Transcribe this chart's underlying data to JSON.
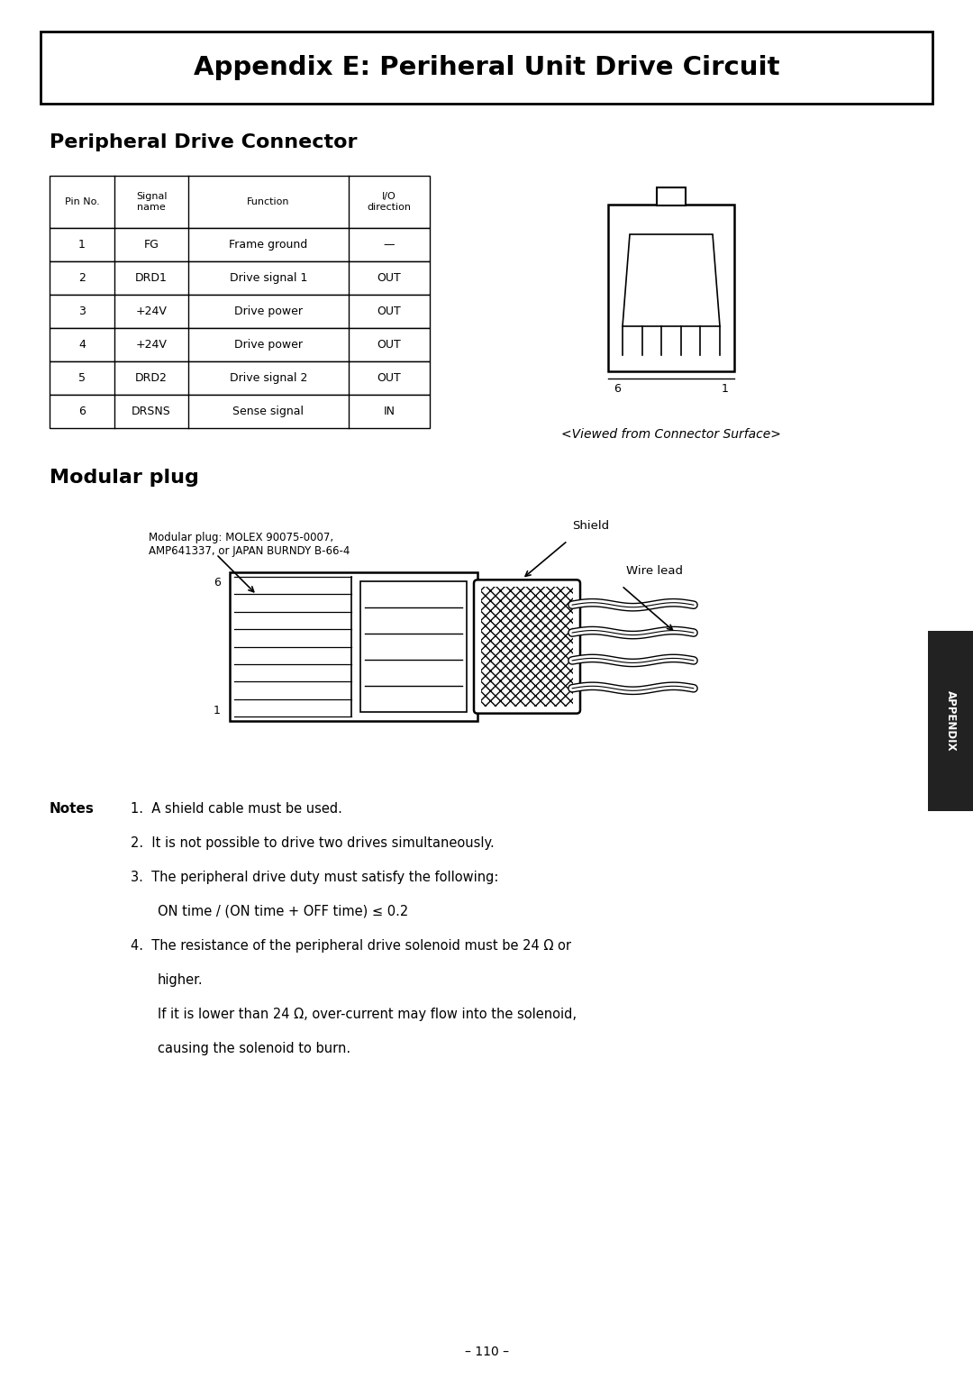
{
  "title": "Appendix E: Periheral Unit Drive Circuit",
  "section1": "Peripheral Drive Connector",
  "section2": "Modular plug",
  "table_headers": [
    "Pin No.",
    "Signal\nname",
    "Function",
    "I/O\ndirection"
  ],
  "table_rows": [
    [
      "1",
      "FG",
      "Frame ground",
      "—"
    ],
    [
      "2",
      "DRD1",
      "Drive signal 1",
      "OUT"
    ],
    [
      "3",
      "+24V",
      "Drive power",
      "OUT"
    ],
    [
      "4",
      "+24V",
      "Drive power",
      "OUT"
    ],
    [
      "5",
      "DRD2",
      "Drive signal 2",
      "OUT"
    ],
    [
      "6",
      "DRSNS",
      "Sense signal",
      "IN"
    ]
  ],
  "connector_label": "<Viewed from Connector Surface>",
  "modular_plug_label": "Modular plug: MOLEX 90075-0007,\nAMP641337, or JAPAN BURNDY B-66-4",
  "shield_label": "Shield",
  "wire_lead_label": "Wire lead",
  "notes_label": "Notes",
  "note1": "A shield cable must be used.",
  "note2": "It is not possible to drive two drives simultaneously.",
  "note3a": "The peripheral drive duty must satisfy the following:",
  "note3b": "ON time / (ON time + OFF time) ≤ 0.2",
  "note4a": "The resistance of the peripheral drive solenoid must be 24 Ω or",
  "note4b": "higher.",
  "note4c": "If it is lower than 24 Ω, over-current may flow into the solenoid,",
  "note4d": "causing the solenoid to burn.",
  "page_number": "– 110 –",
  "appendix_tab": "APPENDIX",
  "bg_color": "#ffffff",
  "text_color": "#000000",
  "tab_bg": "#222222"
}
